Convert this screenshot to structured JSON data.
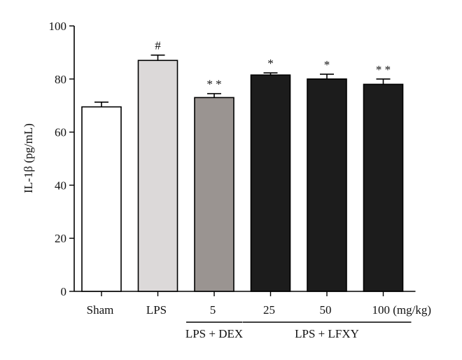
{
  "chart_data": {
    "type": "bar",
    "ylabel": "IL-1β (pg/mL)",
    "ylim": [
      0,
      100
    ],
    "yticks": [
      0,
      20,
      40,
      60,
      80,
      100
    ],
    "categories": [
      "Sham",
      "LPS",
      "5",
      "25",
      "50",
      "100 (mg/kg)"
    ],
    "values": [
      69.5,
      87.0,
      73.0,
      81.5,
      80.0,
      78.0
    ],
    "errors": [
      1.8,
      2.0,
      1.5,
      0.8,
      1.8,
      2.0
    ],
    "annotations": [
      "",
      "#",
      "* *",
      "*",
      "*",
      "* *"
    ],
    "colors": [
      "#ffffff",
      "#dcd9d9",
      "#9a9491",
      "#1c1c1c",
      "#1c1c1c",
      "#1c1c1c"
    ],
    "groups": [
      {
        "label": "LPS + DEX",
        "from": 2,
        "to": 2
      },
      {
        "label": "LPS + LFXY",
        "from": 3,
        "to": 5
      }
    ],
    "grid": false
  }
}
